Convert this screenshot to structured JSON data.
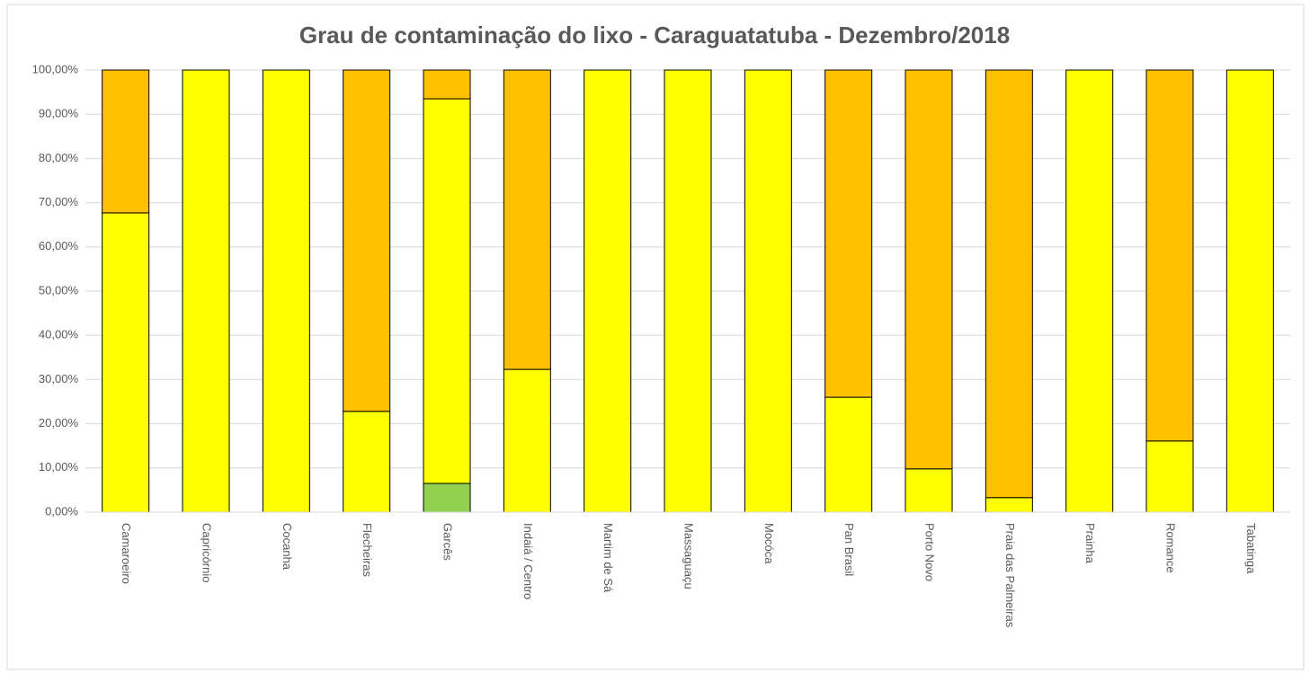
{
  "chart_data": {
    "type": "stacked_bar",
    "title": "Grau de contaminação do lixo - Caraguatatuba - Dezembro/2018",
    "categories": [
      "Camaroeiro",
      "Capricórnio",
      "Cocanha",
      "Flecheiras",
      "Garcês",
      "Indaiá / Centro",
      "Martim de Sá",
      "Massaguaçu",
      "Mocóca",
      "Pan Brasil",
      "Porto Novo",
      "Praia das Palmeiras",
      "Prainha",
      "Romance",
      "Tabatinga"
    ],
    "series": [
      {
        "color": "#92d050",
        "values": [
          0,
          0,
          0,
          0,
          6.5,
          0,
          0,
          0,
          0,
          0,
          0,
          0,
          0,
          0,
          0
        ]
      },
      {
        "color": "#ffff00",
        "values": [
          67.7,
          100,
          100,
          22.8,
          87,
          32.3,
          100,
          100,
          100,
          26,
          9.8,
          3.3,
          100,
          16.1,
          100
        ]
      },
      {
        "color": "#ffc000",
        "values": [
          32.3,
          0,
          0,
          77.2,
          6.5,
          67.7,
          0,
          0,
          0,
          74,
          90.2,
          96.7,
          0,
          83.9,
          0
        ]
      }
    ],
    "ylim": [
      0,
      100
    ],
    "yticks": [
      {
        "value": 0,
        "label": "0,00%"
      },
      {
        "value": 10,
        "label": "10,00%"
      },
      {
        "value": 20,
        "label": "20,00%"
      },
      {
        "value": 30,
        "label": "30,00%"
      },
      {
        "value": 40,
        "label": "40,00%"
      },
      {
        "value": 50,
        "label": "50,00%"
      },
      {
        "value": 60,
        "label": "60,00%"
      },
      {
        "value": 70,
        "label": "70,00%"
      },
      {
        "value": 80,
        "label": "80,00%"
      },
      {
        "value": 90,
        "label": "90,00%"
      },
      {
        "value": 100,
        "label": "100,00%"
      }
    ],
    "grid": true
  }
}
